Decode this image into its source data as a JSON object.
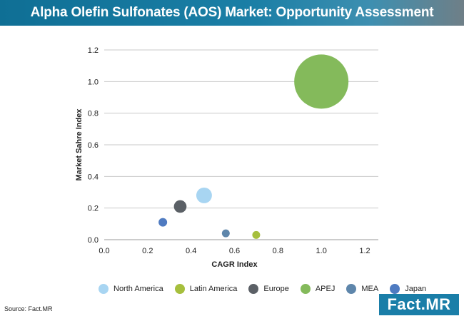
{
  "header": {
    "title": "Alpha Olefin Sulfonates (AOS) Market: Opportunity Assessment"
  },
  "source": "Source: Fact.MR",
  "logo": {
    "text": "Fact.MR"
  },
  "chart_data": {
    "type": "scatter",
    "title": "",
    "xlabel": "CAGR Index",
    "ylabel": "Market Sahre Index",
    "xlim": [
      0.0,
      1.2
    ],
    "ylim": [
      0.0,
      1.2
    ],
    "xticks": [
      "0.0",
      "0.2",
      "0.4",
      "0.6",
      "0.8",
      "1.0",
      "1.2"
    ],
    "yticks": [
      "0.0",
      "0.2",
      "0.4",
      "0.6",
      "0.8",
      "1.0",
      "1.2"
    ],
    "grid": "horizontal",
    "legend_position": "bottom",
    "series": [
      {
        "name": "North America",
        "x": 0.46,
        "y": 0.28,
        "size": 0.2,
        "color": "#a8d5f2"
      },
      {
        "name": "Latin America",
        "x": 0.7,
        "y": 0.03,
        "size": 0.05,
        "color": "#a6bf3d"
      },
      {
        "name": "Europe",
        "x": 0.35,
        "y": 0.21,
        "size": 0.13,
        "color": "#5b6066"
      },
      {
        "name": "APEJ",
        "x": 1.0,
        "y": 1.0,
        "size": 2.4,
        "color": "#84ba5b"
      },
      {
        "name": "MEA",
        "x": 0.56,
        "y": 0.04,
        "size": 0.05,
        "color": "#5e86ab"
      },
      {
        "name": "Japan",
        "x": 0.27,
        "y": 0.11,
        "size": 0.06,
        "color": "#4f7bc1"
      }
    ]
  }
}
